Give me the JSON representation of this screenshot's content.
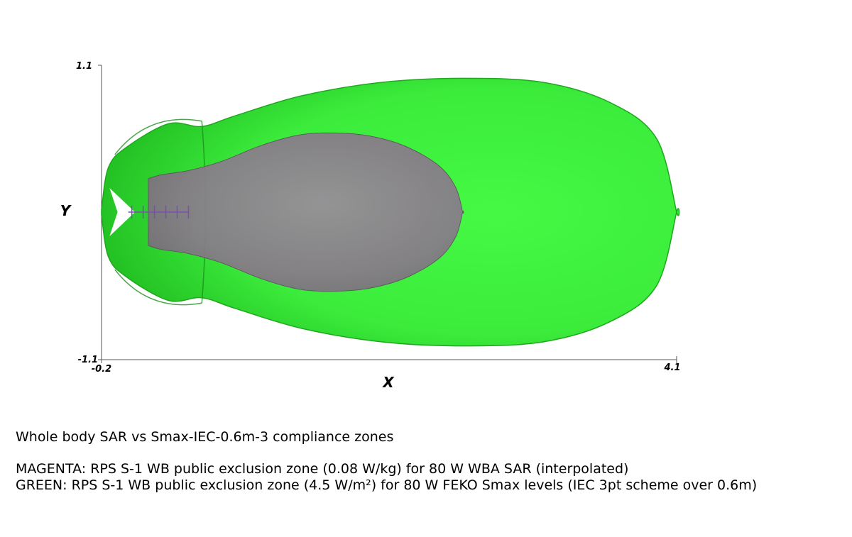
{
  "chart_data": {
    "type": "area",
    "title": "",
    "xlabel": "X",
    "ylabel": "Y",
    "xlim": [
      -0.2,
      4.1
    ],
    "ylim": [
      -1.1,
      1.1
    ],
    "x_ticks": [
      "-0.2",
      "4.1"
    ],
    "y_ticks": [
      "1.1",
      "-1.1"
    ],
    "grid": false,
    "series": [
      {
        "key": "green",
        "color": "#3ff23f",
        "x": [
          -0.2,
          -0.15,
          -0.02,
          0.3,
          0.55,
          0.8,
          1.3,
          1.9,
          2.5,
          3.1,
          3.6,
          3.95,
          4.1
        ],
        "hw": [
          0.02,
          0.33,
          0.48,
          0.66,
          0.64,
          0.72,
          0.87,
          0.97,
          1.0,
          0.97,
          0.82,
          0.55,
          0.0
        ]
      },
      {
        "key": "magenta",
        "color": "#8c7b8c",
        "x": [
          0.15,
          0.25,
          0.45,
          0.7,
          1.0,
          1.3,
          1.6,
          1.85,
          2.1,
          2.33,
          2.45,
          2.5
        ],
        "hw": [
          0.25,
          0.28,
          0.31,
          0.38,
          0.5,
          0.58,
          0.59,
          0.56,
          0.48,
          0.34,
          0.18,
          0.0
        ]
      }
    ]
  },
  "caption": {
    "line1": "Whole body SAR vs Smax-IEC-0.6m-3 compliance zones",
    "line2": "MAGENTA: RPS S-1 WB public exclusion zone (0.08 W/kg) for 80 W WBA SAR (interpolated)",
    "line3": "GREEN: RPS S-1 WB public exclusion zone (4.5 W/m²) for 80 W FEKO Smax levels (IEC 3pt scheme over 0.6m)"
  }
}
